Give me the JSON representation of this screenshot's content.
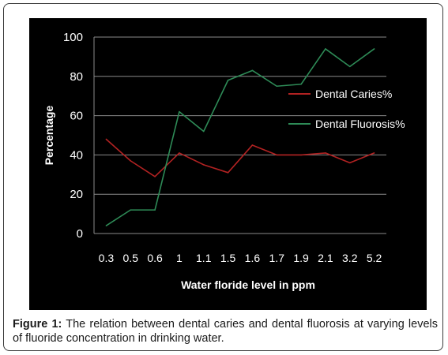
{
  "chart_data": {
    "type": "line",
    "xlabel": "Water floride level in ppm",
    "ylabel": "Percentage",
    "categories": [
      "0.3",
      "0.5",
      "0.6",
      "1",
      "1.1",
      "1.5",
      "1.6",
      "1.7",
      "1.9",
      "2.1",
      "3.2",
      "5.2"
    ],
    "ylim": [
      0,
      100
    ],
    "yticks": [
      0,
      20,
      40,
      60,
      80,
      100
    ],
    "grid": true,
    "legend_position": "right",
    "series": [
      {
        "name": "Dental Caries%",
        "color": "#b22222",
        "values": [
          48,
          37,
          29,
          41,
          35,
          31,
          45,
          40,
          40,
          41,
          36,
          41
        ]
      },
      {
        "name": "Dental Fluorosis%",
        "color": "#2e8b57",
        "values": [
          4,
          12,
          12,
          62,
          52,
          78,
          83,
          75,
          76,
          94,
          85,
          94
        ]
      }
    ]
  },
  "caption": {
    "label": "Figure 1:",
    "text": " The relation between dental caries and dental fluorosis at varying levels of fluoride concentration in drinking water."
  },
  "colors": {
    "background": "#000000",
    "grid": "#8a8a8a",
    "text": "#ffffff"
  }
}
